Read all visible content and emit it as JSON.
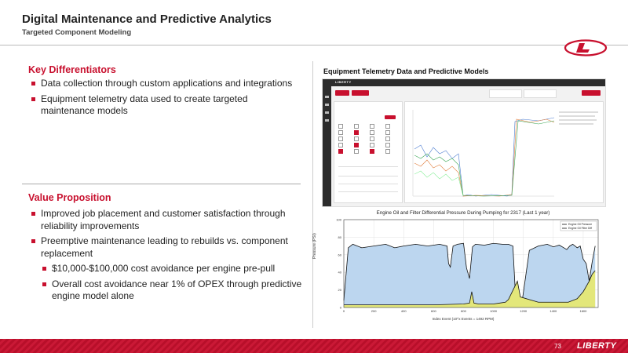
{
  "header": {
    "title": "Digital Maintenance and Predictive Analytics",
    "subtitle": "Targeted Component Modeling"
  },
  "key_differentiators": {
    "heading": "Key Differentiators",
    "items": [
      "Data collection through custom applications and integrations",
      "Equipment telemetry data used to create targeted maintenance models"
    ]
  },
  "value_proposition": {
    "heading": "Value Proposition",
    "items": [
      "Improved job placement and customer satisfaction through reliability improvements",
      "Preemptive maintenance leading to rebuilds vs. component replacement"
    ],
    "sub_items": [
      "$10,000-$100,000 cost avoidance per engine pre-pull",
      "Overall cost avoidance near 1% of OPEX through predictive engine model alone"
    ]
  },
  "right_panel": {
    "title": "Equipment Telemetry Data and Predictive Models",
    "chart_title": "Engine Oil and Filter Differential Pressure During Pumping for 2317 (Last 1 year)",
    "y_label": "Pressure (PSI)",
    "x_label": "Index Event (10^x Events = 1492 RPM)"
  },
  "chart_data": {
    "type": "area",
    "title": "Engine Oil and Filter Differential Pressure During Pumping for 2317 (Last 1 year)",
    "ylabel": "Pressure (PSI)",
    "xlabel": "Index Event (10^x Events = 1492 RPM)",
    "xlim": [
      0,
      1700
    ],
    "ylim": [
      0,
      100
    ],
    "yticks": [
      0,
      20,
      40,
      60,
      80,
      100
    ],
    "xticks": [
      0,
      200,
      400,
      600,
      800,
      1000,
      1200,
      1400,
      1600
    ],
    "legend_position": "top-right",
    "series": [
      {
        "name": "Engine Oil Pressure",
        "color": "#bcd6ef",
        "x": [
          0,
          30,
          60,
          120,
          200,
          280,
          340,
          400,
          480,
          560,
          640,
          690,
          700,
          712,
          730,
          760,
          800,
          820,
          840,
          860,
          880,
          940,
          1000,
          1060,
          1100,
          1130,
          1150,
          1190,
          1240,
          1300,
          1360,
          1400,
          1440,
          1470,
          1490,
          1510,
          1530,
          1560,
          1580,
          1600,
          1620,
          1640,
          1660,
          1680
        ],
        "values": [
          8,
          68,
          72,
          68,
          70,
          72,
          68,
          70,
          72,
          70,
          72,
          70,
          50,
          46,
          70,
          72,
          73,
          45,
          33,
          69,
          72,
          71,
          73,
          72,
          72,
          70,
          5,
          5,
          65,
          70,
          72,
          69,
          71,
          68,
          66,
          70,
          72,
          68,
          70,
          55,
          50,
          30,
          52,
          70
        ]
      },
      {
        "name": "Engine Oil Filter Diff",
        "color": "#e3e77a",
        "x": [
          0,
          200,
          600,
          800,
          840,
          855,
          870,
          900,
          1000,
          1080,
          1100,
          1160,
          1180,
          1300,
          1500,
          1560,
          1600,
          1640,
          1660,
          1680
        ],
        "values": [
          3,
          3,
          3,
          4,
          5,
          18,
          5,
          4,
          4,
          6,
          9,
          30,
          12,
          6,
          6,
          10,
          18,
          30,
          38,
          42
        ]
      }
    ]
  },
  "footer": {
    "page_number": "73",
    "logo_text": "LIBERTY"
  },
  "app": {
    "brand": "LIBERTY"
  }
}
